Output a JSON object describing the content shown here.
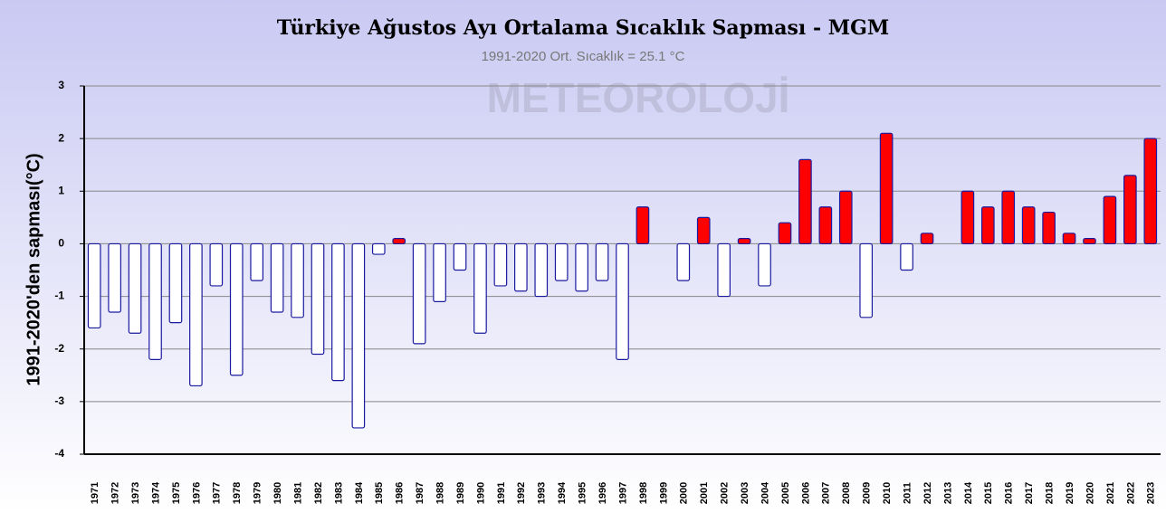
{
  "chart_data": {
    "type": "bar",
    "title": "Türkiye Ağustos Ayı Ortalama Sıcaklık Sapması - MGM",
    "subtitle": "1991-2020 Ort. Sıcaklık = 25.1 °C",
    "watermark": "METEOROLOJİ",
    "y_label": "1991-2020'den sapması(°C)",
    "categories": [
      "1971",
      "1972",
      "1973",
      "1974",
      "1975",
      "1976",
      "1977",
      "1978",
      "1979",
      "1980",
      "1981",
      "1982",
      "1983",
      "1984",
      "1985",
      "1986",
      "1987",
      "1988",
      "1989",
      "1990",
      "1991",
      "1992",
      "1993",
      "1994",
      "1995",
      "1996",
      "1997",
      "1998",
      "1999",
      "2000",
      "2001",
      "2002",
      "2003",
      "2004",
      "2005",
      "2006",
      "2007",
      "2008",
      "2009",
      "2010",
      "2011",
      "2012",
      "2013",
      "2014",
      "2015",
      "2016",
      "2017",
      "2018",
      "2019",
      "2020",
      "2021",
      "2022",
      "2023"
    ],
    "values": [
      -1.6,
      -1.3,
      -1.7,
      -2.2,
      -1.5,
      -2.7,
      -0.8,
      -2.5,
      -0.7,
      -1.3,
      -1.4,
      -2.1,
      -2.6,
      -3.5,
      -0.2,
      0.1,
      -1.9,
      -1.1,
      -0.5,
      -1.7,
      -0.8,
      -0.9,
      -1.0,
      -0.7,
      -0.9,
      -0.7,
      -2.2,
      0.7,
      0,
      -0.7,
      0.5,
      -1.0,
      0.1,
      -0.8,
      0.4,
      1.6,
      0.7,
      1.0,
      -1.4,
      2.1,
      -0.5,
      0.2,
      0,
      1.0,
      0.7,
      1.0,
      0.7,
      0.6,
      0.2,
      0.1,
      0.9,
      1.3,
      2.0
    ],
    "positive_color": "#ff0000",
    "negative_color": "#ffffff",
    "edge_color": "#1a1aa0",
    "ylim": [
      -4,
      3
    ],
    "yticks": [
      -4,
      -3,
      -2,
      -1,
      0,
      1,
      2,
      3
    ],
    "grid": true
  }
}
